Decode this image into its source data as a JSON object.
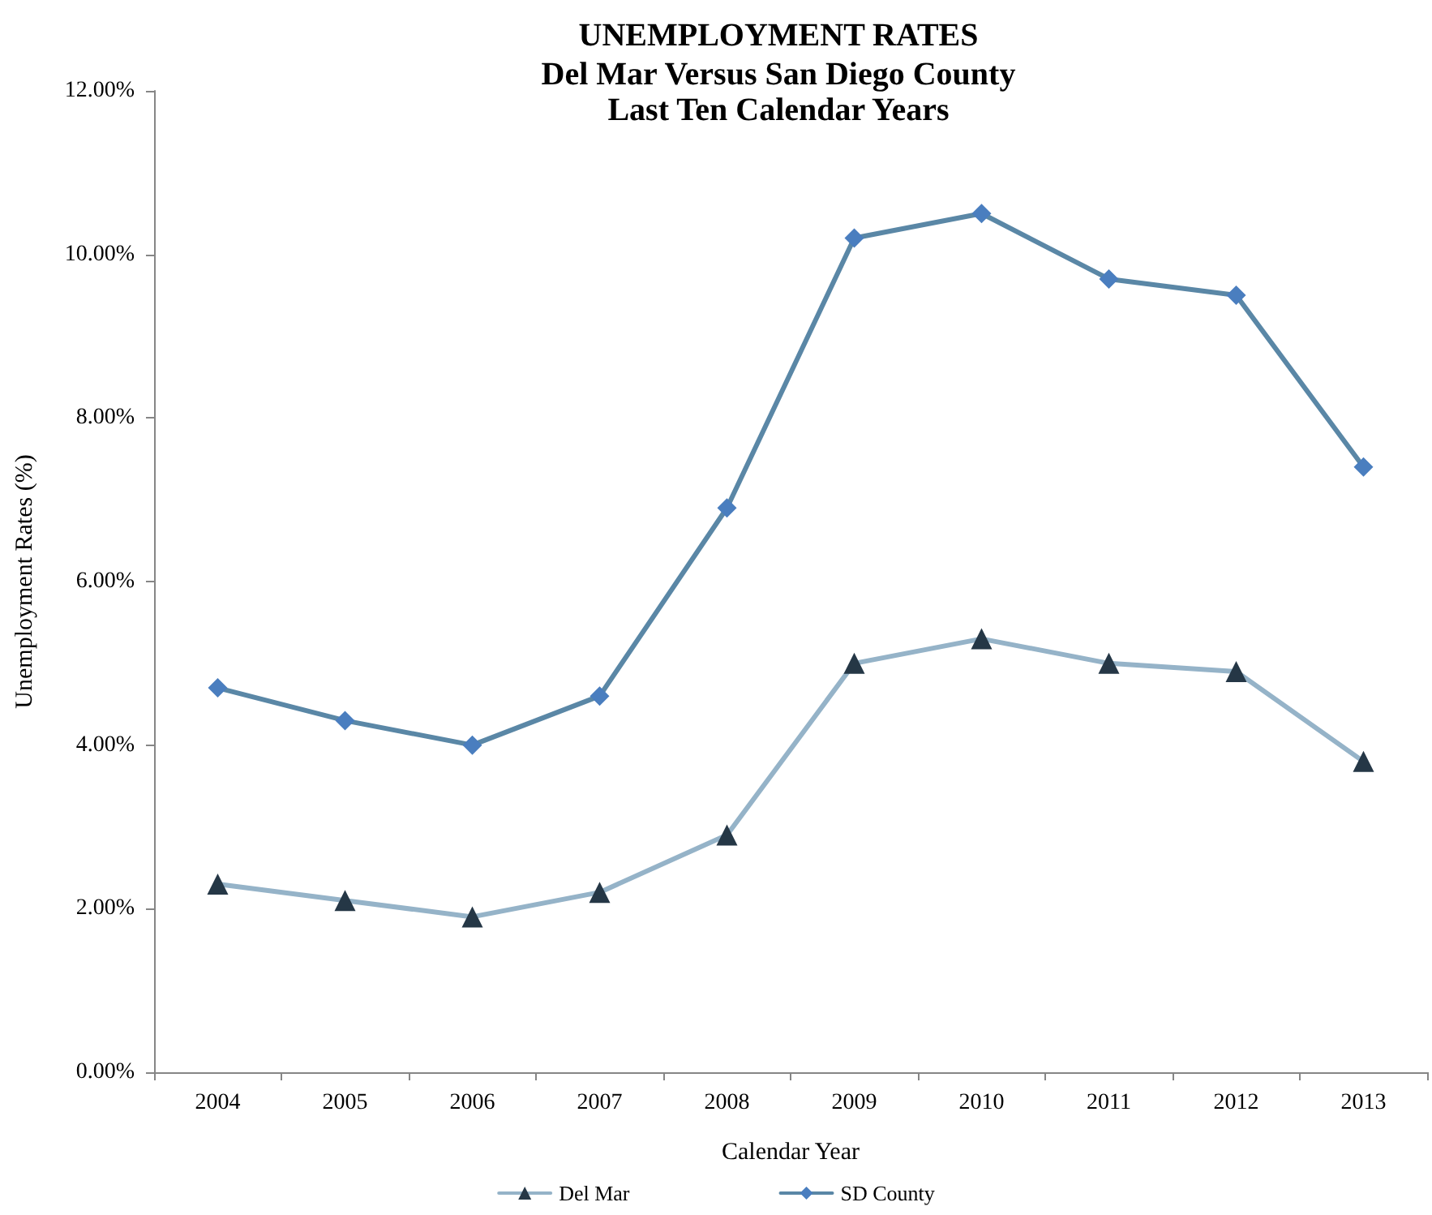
{
  "chart_data": {
    "type": "line",
    "title": "UNEMPLOYMENT RATES",
    "subtitle": "Del Mar Versus San Diego County\nLast Ten Calendar Years",
    "xlabel": "Calendar Year",
    "ylabel": "Unemployment Rates (%)",
    "categories": [
      "2004",
      "2005",
      "2006",
      "2007",
      "2008",
      "2009",
      "2010",
      "2011",
      "2012",
      "2013"
    ],
    "series": [
      {
        "name": "Del Mar",
        "color": "#95b3c8",
        "marker": "triangle",
        "colors": [
          "#253746",
          "#253746",
          "#253746",
          "#253746",
          "#253746",
          "#253746",
          "#253746",
          "#253746",
          "#253746",
          "#253746"
        ],
        "values": [
          2.3,
          2.1,
          1.9,
          2.2,
          2.9,
          5.0,
          5.3,
          5.0,
          4.9,
          3.8
        ]
      },
      {
        "name": "SD County",
        "color": "#5a87a6",
        "marker": "diamond",
        "colors": [
          "#4a7ebf",
          "#4a7ebf",
          "#4a7ebf",
          "#4a7ebf",
          "#4a7ebf",
          "#4a7ebf",
          "#4a7ebf",
          "#4a7ebf",
          "#4a7ebf",
          "#4a7ebf"
        ],
        "values": [
          4.7,
          4.3,
          4.0,
          4.6,
          6.9,
          10.2,
          10.5,
          9.7,
          9.5,
          7.4
        ]
      }
    ],
    "ylim": [
      0,
      12
    ],
    "yticks": [
      {
        "value": 0,
        "label": "0.00%"
      },
      {
        "value": 2,
        "label": "2.00%"
      },
      {
        "value": 4,
        "label": "4.00%"
      },
      {
        "value": 6,
        "label": "6.00%"
      },
      {
        "value": 8,
        "label": "8.00%"
      },
      {
        "value": 10,
        "label": "10.00%"
      },
      {
        "value": 12,
        "label": "12.00%"
      }
    ],
    "grid": false,
    "legend": "bottom",
    "line_style": "solid"
  }
}
